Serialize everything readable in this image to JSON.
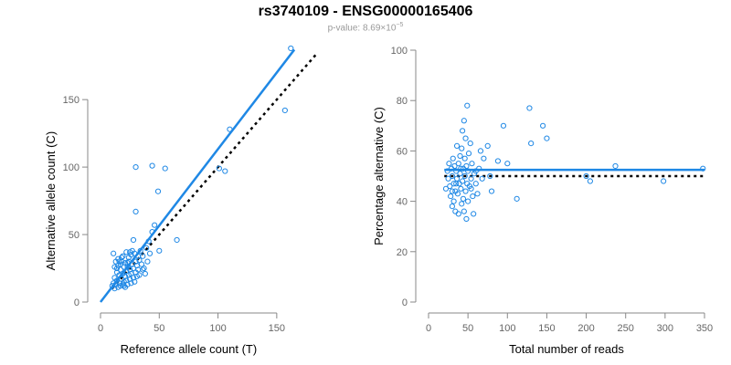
{
  "title": "rs3740109 - ENSG00000165406",
  "subtitle_prefix": "p-value: 8.69×10",
  "subtitle_exp": "−5",
  "colors": {
    "points": "#1f88e5",
    "fit": "#1f88e5",
    "reference": "#000000",
    "axis": "#888888",
    "label": "#000000"
  },
  "chart_data": [
    {
      "type": "scatter",
      "xlabel": "Reference allele count (T)",
      "ylabel": "Alternative allele count (C)",
      "xlim": [
        0,
        175
      ],
      "ylim": [
        0,
        190
      ],
      "x_ticks": [
        0,
        50,
        100,
        150
      ],
      "y_ticks": [
        0,
        50,
        100,
        150
      ],
      "grid": false,
      "fit_line": {
        "from": [
          0,
          0
        ],
        "to": [
          165,
          187
        ],
        "style": "solid"
      },
      "reference_line": {
        "from": [
          10,
          10
        ],
        "to": [
          185,
          185
        ],
        "style": "dotted"
      },
      "points": [
        [
          10,
          12
        ],
        [
          11,
          14
        ],
        [
          12,
          10
        ],
        [
          12,
          18
        ],
        [
          13,
          13
        ],
        [
          14,
          22
        ],
        [
          14,
          16
        ],
        [
          15,
          11
        ],
        [
          15,
          27
        ],
        [
          16,
          20
        ],
        [
          16,
          14
        ],
        [
          17,
          12
        ],
        [
          17,
          24
        ],
        [
          18,
          17
        ],
        [
          18,
          30
        ],
        [
          19,
          13
        ],
        [
          19,
          21
        ],
        [
          20,
          15
        ],
        [
          20,
          26
        ],
        [
          21,
          19
        ],
        [
          21,
          11
        ],
        [
          22,
          23
        ],
        [
          22,
          16
        ],
        [
          23,
          29
        ],
        [
          23,
          13
        ],
        [
          24,
          20
        ],
        [
          24,
          33
        ],
        [
          25,
          17
        ],
        [
          25,
          24
        ],
        [
          26,
          14
        ],
        [
          26,
          21
        ],
        [
          27,
          28
        ],
        [
          27,
          38
        ],
        [
          28,
          18
        ],
        [
          28,
          25
        ],
        [
          29,
          15
        ],
        [
          29,
          36
        ],
        [
          30,
          22
        ],
        [
          30,
          30
        ],
        [
          31,
          19
        ],
        [
          31,
          27
        ],
        [
          32,
          34
        ],
        [
          32,
          24
        ],
        [
          33,
          31
        ],
        [
          33,
          20
        ],
        [
          34,
          38
        ],
        [
          35,
          28
        ],
        [
          36,
          34
        ],
        [
          37,
          25
        ],
        [
          38,
          21
        ],
        [
          39,
          40
        ],
        [
          40,
          30
        ],
        [
          42,
          36
        ],
        [
          44,
          52
        ],
        [
          46,
          57
        ],
        [
          50,
          38
        ],
        [
          11,
          36
        ],
        [
          13,
          30
        ],
        [
          14,
          25
        ],
        [
          16,
          30
        ],
        [
          18,
          33
        ],
        [
          20,
          12
        ],
        [
          22,
          37
        ],
        [
          24,
          30
        ],
        [
          26,
          35
        ],
        [
          12,
          26
        ],
        [
          15,
          32
        ],
        [
          17,
          28
        ],
        [
          19,
          34
        ],
        [
          21,
          29
        ],
        [
          23,
          26
        ],
        [
          25,
          37
        ],
        [
          30,
          100
        ],
        [
          30,
          67
        ],
        [
          44,
          101
        ],
        [
          55,
          99
        ],
        [
          49,
          82
        ],
        [
          65,
          46
        ],
        [
          101,
          99
        ],
        [
          106,
          97
        ],
        [
          110,
          128
        ],
        [
          157,
          142
        ],
        [
          162,
          188
        ],
        [
          28,
          46
        ],
        [
          36,
          24
        ],
        [
          41,
          45
        ]
      ]
    },
    {
      "type": "scatter",
      "xlabel": "Total number of reads",
      "ylabel": "Percentage alternative (C)",
      "xlim": [
        0,
        350
      ],
      "ylim": [
        0,
        100
      ],
      "x_ticks": [
        0,
        50,
        100,
        150,
        200,
        250,
        300,
        350
      ],
      "y_ticks": [
        0,
        20,
        40,
        60,
        80,
        100
      ],
      "grid": false,
      "fit_line": {
        "from": [
          20,
          52.5
        ],
        "to": [
          350,
          52.5
        ],
        "style": "solid"
      },
      "reference_line": {
        "from": [
          20,
          50
        ],
        "to": [
          350,
          50
        ],
        "style": "dotted"
      },
      "points": [
        [
          22,
          45
        ],
        [
          24,
          52
        ],
        [
          25,
          49
        ],
        [
          26,
          55
        ],
        [
          27,
          46
        ],
        [
          28,
          42
        ],
        [
          29,
          53
        ],
        [
          30,
          50
        ],
        [
          30,
          38
        ],
        [
          31,
          57
        ],
        [
          32,
          47
        ],
        [
          32,
          40
        ],
        [
          33,
          54
        ],
        [
          34,
          44
        ],
        [
          34,
          36
        ],
        [
          35,
          52
        ],
        [
          36,
          49
        ],
        [
          36,
          62
        ],
        [
          37,
          43
        ],
        [
          38,
          55
        ],
        [
          38,
          35
        ],
        [
          39,
          47
        ],
        [
          40,
          51
        ],
        [
          40,
          58
        ],
        [
          41,
          45
        ],
        [
          42,
          39
        ],
        [
          42,
          61
        ],
        [
          43,
          48
        ],
        [
          43,
          68
        ],
        [
          44,
          53
        ],
        [
          44,
          41
        ],
        [
          45,
          36
        ],
        [
          45,
          72
        ],
        [
          46,
          50
        ],
        [
          46,
          57
        ],
        [
          47,
          44
        ],
        [
          47,
          65
        ],
        [
          48,
          33
        ],
        [
          48,
          54
        ],
        [
          49,
          47
        ],
        [
          49,
          78
        ],
        [
          50,
          40
        ],
        [
          50,
          52
        ],
        [
          51,
          59
        ],
        [
          52,
          46
        ],
        [
          53,
          63
        ],
        [
          54,
          49
        ],
        [
          55,
          55
        ],
        [
          56,
          42
        ],
        [
          57,
          35
        ],
        [
          58,
          51
        ],
        [
          60,
          47
        ],
        [
          62,
          43
        ],
        [
          64,
          53
        ],
        [
          66,
          60
        ],
        [
          68,
          49
        ],
        [
          70,
          57
        ],
        [
          75,
          62
        ],
        [
          78,
          50
        ],
        [
          80,
          44
        ],
        [
          88,
          56
        ],
        [
          95,
          70
        ],
        [
          100,
          55
        ],
        [
          112,
          41
        ],
        [
          128,
          77
        ],
        [
          130,
          63
        ],
        [
          145,
          70
        ],
        [
          150,
          65
        ],
        [
          200,
          50
        ],
        [
          205,
          48
        ],
        [
          237,
          54
        ],
        [
          298,
          48
        ],
        [
          348,
          53
        ],
        [
          30,
          44
        ],
        [
          35,
          47
        ],
        [
          41,
          53
        ],
        [
          54,
          45
        ],
        [
          60,
          52
        ]
      ]
    }
  ]
}
